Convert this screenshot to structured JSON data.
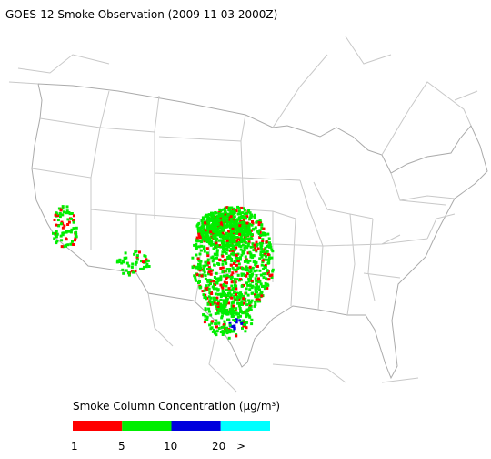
{
  "title": "GOES-12 Smoke Observation (2009 11 03  2000Z)",
  "legend": {
    "title": "Smoke Column Concentration (μg/m³)",
    "colors": [
      "#ff0000",
      "#00ee00",
      "#0000dd",
      "#00ffff"
    ],
    "ticks": [
      1,
      5,
      10,
      20,
      ">"
    ]
  }
}
